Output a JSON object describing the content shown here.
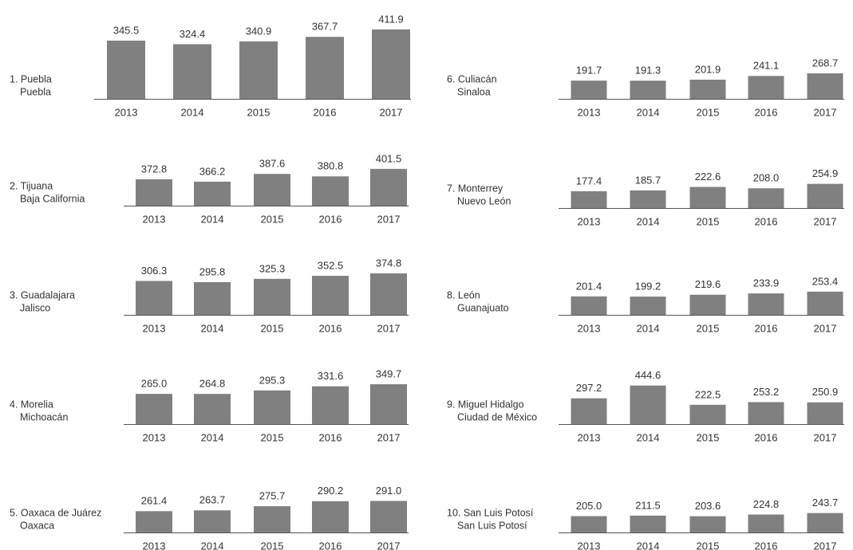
{
  "chart_data": [
    {
      "type": "bar",
      "title": "1. Puebla",
      "subtitle": "Puebla",
      "categories": [
        "2013",
        "2014",
        "2015",
        "2016",
        "2017"
      ],
      "values": [
        345.5,
        324.4,
        340.9,
        367.7,
        411.9
      ],
      "ylim": [
        0,
        473
      ],
      "color": "#808080"
    },
    {
      "type": "bar",
      "title": "2. Tijuana",
      "subtitle": "Baja California",
      "categories": [
        "2013",
        "2014",
        "2015",
        "2016",
        "2017"
      ],
      "values": [
        372.8,
        366.2,
        387.6,
        380.8,
        401.5
      ],
      "ylim": [
        300,
        520
      ],
      "color": "#808080"
    },
    {
      "type": "bar",
      "title": "3. Guadalajara",
      "subtitle": "Jalisco",
      "categories": [
        "2013",
        "2014",
        "2015",
        "2016",
        "2017"
      ],
      "values": [
        306.3,
        295.8,
        325.3,
        352.5,
        374.8
      ],
      "ylim": [
        0,
        720
      ],
      "color": "#808080"
    },
    {
      "type": "bar",
      "title": "4. Morelia",
      "subtitle": "Michoacán",
      "categories": [
        "2013",
        "2014",
        "2015",
        "2016",
        "2017"
      ],
      "values": [
        265.0,
        264.8,
        295.3,
        331.6,
        349.7
      ],
      "value_labels": [
        "265.0",
        "264.8",
        "295.3",
        "331.6",
        "349.7"
      ],
      "ylim": [
        0,
        700
      ],
      "color": "#808080"
    },
    {
      "type": "bar",
      "title": "5. Oaxaca de Juárez",
      "subtitle": "Oaxaca",
      "categories": [
        "2013",
        "2014",
        "2015",
        "2016",
        "2017"
      ],
      "values": [
        261.4,
        263.7,
        275.7,
        290.2,
        291.0
      ],
      "value_labels": [
        "261.4",
        "263.7",
        "275.7",
        "290.2",
        "291.0"
      ],
      "ylim": [
        200,
        430
      ],
      "color": "#808080"
    },
    {
      "type": "bar",
      "title": "6. Culiacán",
      "subtitle": "Sinaloa",
      "categories": [
        "2013",
        "2014",
        "2015",
        "2016",
        "2017"
      ],
      "values": [
        191.7,
        191.3,
        201.9,
        241.1,
        268.7
      ],
      "ylim": [
        0,
        840
      ],
      "color": "#808080"
    },
    {
      "type": "bar",
      "title": "7. Monterrey",
      "subtitle": "Nuevo León",
      "categories": [
        "2013",
        "2014",
        "2015",
        "2016",
        "2017"
      ],
      "values": [
        177.4,
        185.7,
        222.6,
        208.0,
        254.9
      ],
      "value_labels": [
        "177.4",
        "185.7",
        "222.6",
        "208.0",
        "254.9"
      ],
      "ylim": [
        0,
        840
      ],
      "color": "#808080"
    },
    {
      "type": "bar",
      "title": "8. León",
      "subtitle": "Guanajuato",
      "categories": [
        "2013",
        "2014",
        "2015",
        "2016",
        "2017"
      ],
      "values": [
        201.4,
        199.2,
        219.6,
        233.9,
        253.4
      ],
      "ylim": [
        0,
        870
      ],
      "color": "#808080"
    },
    {
      "type": "bar",
      "title": "9. Miguel Hidalgo",
      "subtitle": "Ciudad de México",
      "categories": [
        "2013",
        "2014",
        "2015",
        "2016",
        "2017"
      ],
      "values": [
        297.2,
        444.6,
        222.5,
        253.2,
        250.9
      ],
      "ylim": [
        0,
        920
      ],
      "color": "#808080"
    },
    {
      "type": "bar",
      "title": "10. San Luis Potosí",
      "subtitle": "San Luis Potosí",
      "categories": [
        "2013",
        "2014",
        "2015",
        "2016",
        "2017"
      ],
      "values": [
        205.0,
        211.5,
        203.6,
        224.8,
        243.7
      ],
      "value_labels": [
        "205.0",
        "211.5",
        "203.6",
        "224.8",
        "243.7"
      ],
      "ylim": [
        0,
        1000
      ],
      "color": "#808080"
    }
  ]
}
